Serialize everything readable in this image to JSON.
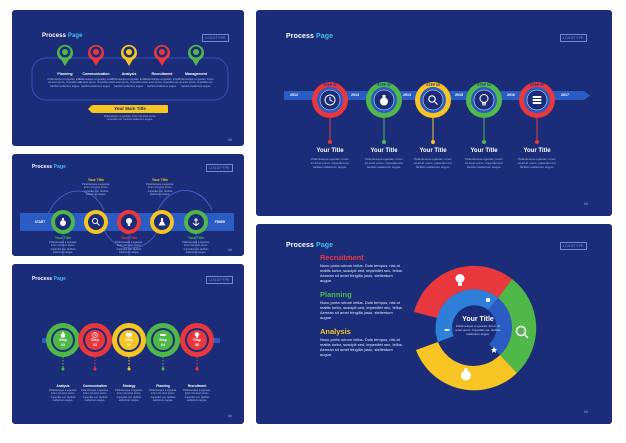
{
  "slides": {
    "title_word": "Process",
    "title_page": "Page",
    "logo": "LOGOTYPE",
    "page_number": "##"
  },
  "slide1": {
    "steps": [
      "Planning",
      "Communication",
      "Analysis",
      "Recruitment",
      "Management"
    ],
    "main_title": "Your Main Title",
    "body": "Pellentesque a egestas, lorem sit amet purus. Imperdiet est, facilisis stellentum augue."
  },
  "slide2": {
    "years": [
      "2012",
      "2013",
      "2014",
      "2015",
      "2016",
      "2017"
    ],
    "step_labels": [
      "STEP 01",
      "STEP 02",
      "STEP 03",
      "STEP 04",
      "STEP 05"
    ],
    "item_title": "Your Title",
    "item_text": "Pellentesque egestas, lorem sit amet purus, imperdiet est, facilisis stellentum augue."
  },
  "slide3": {
    "start": "START",
    "finish": "FINISH",
    "item_title": "Your Title",
    "item_text": "Pellentesque a egestas, lorem sit amet purus. Imperdiet est, facilisis stellentum augue."
  },
  "slide4": {
    "step_word": "Step",
    "step_nums": [
      "01",
      "02",
      "03",
      "04",
      "05"
    ],
    "labels": [
      "Analysis",
      "Communication",
      "Strategy",
      "Planning",
      "Recruitment"
    ],
    "item_text": "Pellentesque a egestas, lorem sit amet purus. Imperdiet est, facilisis stellentum augue."
  },
  "slide5": {
    "sections": [
      {
        "title": "Recruitment",
        "color": "#e8383d"
      },
      {
        "title": "Planning",
        "color": "#50b848"
      },
      {
        "title": "Analysis",
        "color": "#f6c523"
      }
    ],
    "section_text": "Nunc porta rutrum tellus. Duis tempus, nisi at mattis tortor, suscipit sed, imperdiet nec, tellus. Aenean sit amet fringilla justo, stellentum augue.",
    "center_title": "Your Title",
    "center_text": "Pellentesque a egestas, lorem sit amet purus. Imperdiet est, facilisis stellentum augue."
  },
  "colors": {
    "slide_bg": "#1b2d78",
    "ribbon": "#2a5cc4",
    "accent_blue": "#3cc0f0",
    "red": "#e8383d",
    "green": "#50b848",
    "yellow": "#f6c523",
    "blue": "#2e7fd8",
    "orange": "#f28c28",
    "gold_bar": "#f6c523"
  },
  "icons": [
    "money-bag-icon",
    "clock-icon",
    "magnifier-icon",
    "lightbulb-icon",
    "balloon-icon",
    "coins-icon",
    "monitor-icon",
    "flask-icon",
    "anchor-icon",
    "handshake-icon",
    "telephone-icon",
    "star-icon"
  ]
}
